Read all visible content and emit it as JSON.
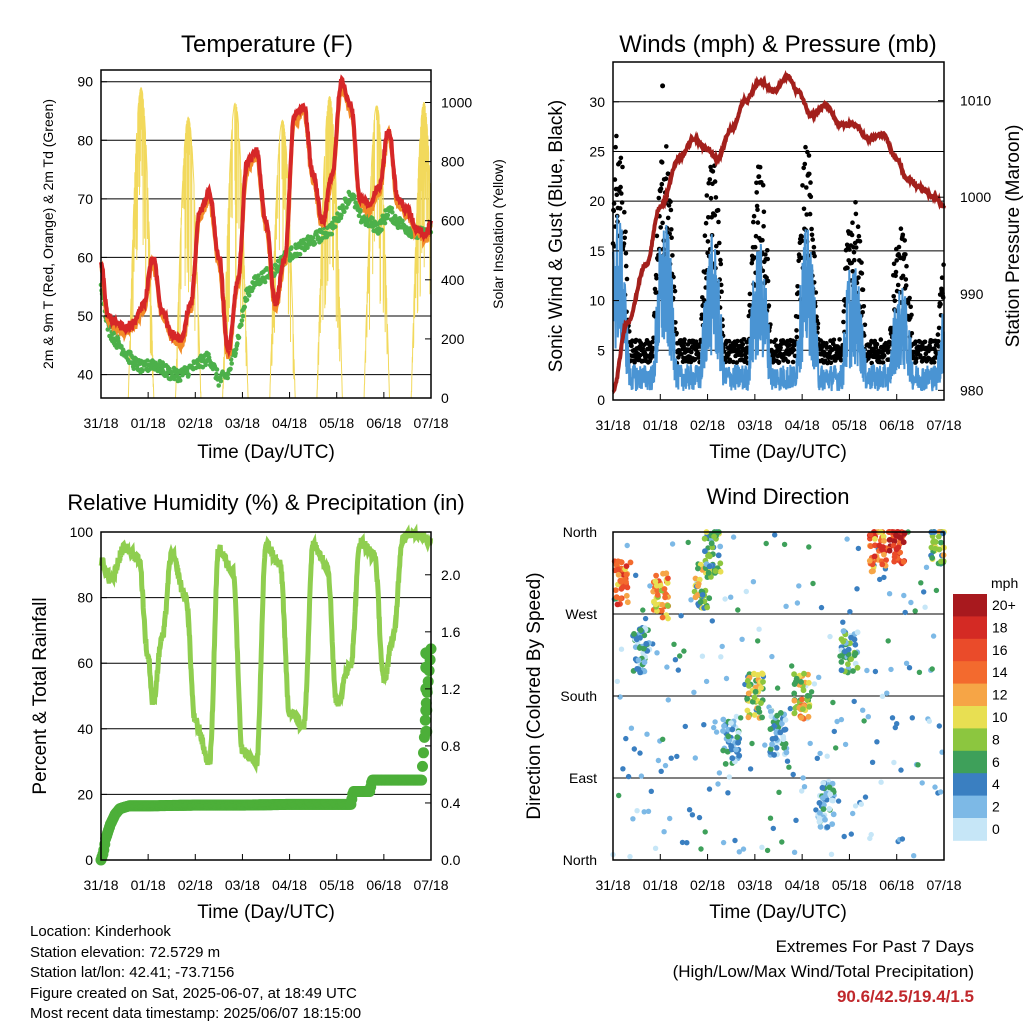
{
  "colors": {
    "red": "#d62728",
    "orange": "#f28c28",
    "green": "#4cb04a",
    "yellow": "#f2d95c",
    "blue": "#4a94d3",
    "black": "#000000",
    "maroon": "#a3201c",
    "rh_green": "#8fce4f",
    "rain_green": "#4caf39"
  },
  "day_ticks": [
    "31/18",
    "01/18",
    "02/18",
    "03/18",
    "04/18",
    "05/18",
    "06/18",
    "07/18"
  ],
  "panels": {
    "temperature": {
      "title": "Temperature (F)",
      "xlabel": "Time (Day/UTC)",
      "ylabel": "2m & 9m T (Red, Orange) & 2m Td (Green)",
      "ylabel_right": "Solar Insolation (Yellow)"
    },
    "wind": {
      "title": "Winds (mph) & Pressure (mb)",
      "xlabel": "Time (Day/UTC)",
      "ylabel": "Sonic Wind & Gust (Blue, Black)",
      "ylabel_right": "Station Pressure (Maroon)"
    },
    "humidity": {
      "title": "Relative Humidity (%) & Precipitation (in)",
      "xlabel": "Time (Day/UTC)",
      "ylabel": "Percent & Total Rainfall"
    },
    "direction": {
      "title": "Wind Direction",
      "xlabel": "Time (Day/UTC)",
      "ylabel": "Direction (Colored By Speed)",
      "legend_title": "mph",
      "legend_labels": [
        "20+",
        "18",
        "16",
        "14",
        "12",
        "10",
        "8",
        "6",
        "4",
        "2",
        "0"
      ],
      "legend_colors": [
        "#a8191e",
        "#d42a24",
        "#ea4b2a",
        "#f36a2e",
        "#f6a546",
        "#e8df52",
        "#8cc63f",
        "#3ea05a",
        "#3a7fc1",
        "#7db9e6",
        "#c6e6f7"
      ]
    }
  },
  "info": {
    "location": "Location: Kinderhook",
    "elevation": "Station elevation: 72.5729 m",
    "latlon": "Station lat/lon: 42.41; -73.7156",
    "created": "Figure created on Sat, 2025-06-07, at 18:49 UTC",
    "recent": "Most recent data timestamp: 2025/06/07 18:15:00"
  },
  "extremes": {
    "line1": "Extremes For Past 7 Days",
    "line2": "(High/Low/Max Wind/Total Precipitation)",
    "values": "90.6/42.5/19.4/1.5"
  },
  "chart_data": [
    {
      "type": "line",
      "title": "Temperature (F)",
      "xlabel": "Time (Day/UTC)",
      "ylabel": "2m & 9m T (Red, Orange) & 2m Td (Green)",
      "ylabel_right": "Solar Insolation (Yellow)",
      "x_ticks": [
        "31/18",
        "01/18",
        "02/18",
        "03/18",
        "04/18",
        "05/18",
        "06/18",
        "07/18"
      ],
      "ylim": [
        36,
        92
      ],
      "yticks": [
        40,
        50,
        60,
        70,
        80,
        90
      ],
      "y2lim": [
        0,
        1110
      ],
      "y2ticks": [
        0,
        200,
        400,
        600,
        800,
        1000
      ],
      "x_days": [
        0,
        0.15,
        0.3,
        0.5,
        0.7,
        0.9,
        1.1,
        1.3,
        1.5,
        1.7,
        1.9,
        2.1,
        2.3,
        2.5,
        2.7,
        2.9,
        3.1,
        3.3,
        3.5,
        3.7,
        3.9,
        4.1,
        4.3,
        4.5,
        4.7,
        4.9,
        5.1,
        5.3,
        5.5,
        5.7,
        5.9,
        6.1,
        6.3,
        6.5,
        6.7,
        6.9,
        7.0
      ],
      "series": [
        {
          "name": "2m T",
          "color": "red",
          "values": [
            59,
            50,
            49,
            48,
            49,
            52,
            60,
            51,
            47,
            46,
            52,
            68,
            71,
            60,
            44,
            56,
            76,
            78,
            66,
            52,
            60,
            84,
            86,
            74,
            66,
            74,
            90,
            86,
            70,
            69,
            72,
            82,
            70,
            68,
            65,
            64,
            66
          ]
        },
        {
          "name": "2m Td",
          "color": "green",
          "values": [
            56,
            48,
            46,
            44,
            42,
            41,
            42,
            41,
            40,
            40,
            41,
            42,
            43,
            39,
            40,
            46,
            54,
            56,
            57,
            58,
            60,
            61,
            62,
            63,
            64,
            65,
            68,
            71,
            67,
            66,
            65,
            68,
            66,
            65,
            64,
            64,
            65
          ]
        },
        {
          "name": "Solar Insolation",
          "color": "yellow",
          "peaks_day": [
            0.85,
            1.85,
            2.85,
            3.85,
            4.85,
            5.85,
            6.85
          ],
          "peaks_value": [
            1050,
            950,
            1000,
            940,
            1020,
            990,
            1000
          ]
        }
      ]
    },
    {
      "type": "line",
      "title": "Winds (mph) & Pressure (mb)",
      "xlabel": "Time (Day/UTC)",
      "ylabel": "Sonic Wind & Gust (Blue, Black)",
      "ylabel_right": "Station Pressure (Maroon)",
      "x_ticks": [
        "31/18",
        "01/18",
        "02/18",
        "03/18",
        "04/18",
        "05/18",
        "06/18",
        "07/18"
      ],
      "ylim": [
        0,
        34
      ],
      "yticks": [
        0,
        5,
        10,
        15,
        20,
        25,
        30
      ],
      "y2lim": [
        979,
        1014
      ],
      "y2ticks": [
        980,
        990,
        1000,
        1010
      ],
      "series": [
        {
          "name": "Station Pressure",
          "color": "maroon",
          "x_days": [
            0,
            0.3,
            0.7,
            1.0,
            1.4,
            1.7,
            2.0,
            2.2,
            2.5,
            2.8,
            3.1,
            3.4,
            3.7,
            3.9,
            4.2,
            4.5,
            4.8,
            5.1,
            5.4,
            5.7,
            6.0,
            6.2,
            6.5,
            6.8,
            7.0
          ],
          "values": [
            980,
            987,
            993,
            999,
            1004,
            1006,
            1005,
            1004,
            1007,
            1010,
            1012,
            1011,
            1012.5,
            1011,
            1008.5,
            1009.5,
            1007.5,
            1007.5,
            1006,
            1006.5,
            1004,
            1002,
            1001,
            1000,
            999
          ]
        }
      ],
      "wind_diurnal_peaks_mph": [
        24,
        22,
        20,
        19,
        21,
        15,
        12,
        14
      ],
      "max_gust": 31.6
    },
    {
      "type": "line",
      "title": "Relative Humidity (%) & Precipitation (in)",
      "xlabel": "Time (Day/UTC)",
      "ylabel": "Percent & Total Rainfall",
      "x_ticks": [
        "31/18",
        "01/18",
        "02/18",
        "03/18",
        "04/18",
        "05/18",
        "06/18",
        "07/18"
      ],
      "ylim": [
        0,
        100
      ],
      "yticks": [
        0,
        20,
        40,
        60,
        80,
        100
      ],
      "y2lim": [
        0,
        2.3
      ],
      "y2ticks": [
        0.0,
        0.4,
        0.8,
        1.2,
        1.6,
        2.0
      ],
      "series": [
        {
          "name": "Relative Humidity",
          "color": "rh_green",
          "x_days": [
            0,
            0.2,
            0.5,
            0.8,
            1.0,
            1.1,
            1.3,
            1.5,
            1.8,
            2.0,
            2.3,
            2.5,
            2.8,
            3.0,
            3.3,
            3.5,
            3.8,
            4.0,
            4.3,
            4.5,
            4.8,
            5.0,
            5.3,
            5.5,
            5.8,
            6.0,
            6.2,
            6.4,
            6.6,
            6.8,
            7.0
          ],
          "values": [
            91,
            86,
            95,
            92,
            62,
            48,
            68,
            93,
            80,
            42,
            30,
            95,
            88,
            33,
            30,
            96,
            90,
            45,
            41,
            96,
            90,
            48,
            60,
            97,
            93,
            55,
            68,
            98,
            100,
            99,
            97
          ]
        },
        {
          "name": "Total Rainfall",
          "color": "rain_green",
          "x_days": [
            0,
            0.05,
            0.1,
            0.2,
            0.3,
            0.4,
            0.5,
            0.6,
            1.0,
            2.0,
            3.0,
            4.0,
            5.0,
            5.3,
            5.35,
            5.7,
            5.75,
            6.0,
            6.8,
            6.85,
            6.9,
            7.0
          ],
          "values": [
            0.0,
            0.05,
            0.15,
            0.25,
            0.32,
            0.36,
            0.37,
            0.38,
            0.38,
            0.385,
            0.385,
            0.39,
            0.39,
            0.39,
            0.48,
            0.48,
            0.56,
            0.56,
            0.56,
            0.8,
            1.1,
            1.48
          ]
        }
      ]
    },
    {
      "type": "scatter",
      "title": "Wind Direction",
      "xlabel": "Time (Day/UTC)",
      "ylabel": "Direction (Colored By Speed)",
      "x_ticks": [
        "31/18",
        "01/18",
        "02/18",
        "03/18",
        "04/18",
        "05/18",
        "06/18",
        "07/18"
      ],
      "y_ticks": [
        "North",
        "West",
        "South",
        "East",
        "North"
      ],
      "ylim_deg": [
        360,
        0
      ],
      "clusters": [
        {
          "day": 0.2,
          "dir_deg": 305,
          "speed_mph": 14
        },
        {
          "day": 0.6,
          "dir_deg": 230,
          "speed_mph": 3
        },
        {
          "day": 1.0,
          "dir_deg": 290,
          "speed_mph": 12
        },
        {
          "day": 1.9,
          "dir_deg": 300,
          "speed_mph": 8
        },
        {
          "day": 2.1,
          "dir_deg": 340,
          "speed_mph": 6
        },
        {
          "day": 2.5,
          "dir_deg": 130,
          "speed_mph": 3
        },
        {
          "day": 3.0,
          "dir_deg": 180,
          "speed_mph": 9
        },
        {
          "day": 3.5,
          "dir_deg": 140,
          "speed_mph": 3
        },
        {
          "day": 4.0,
          "dir_deg": 180,
          "speed_mph": 10
        },
        {
          "day": 4.5,
          "dir_deg": 60,
          "speed_mph": 3
        },
        {
          "day": 5.0,
          "dir_deg": 230,
          "speed_mph": 4
        },
        {
          "day": 5.6,
          "dir_deg": 340,
          "speed_mph": 14
        },
        {
          "day": 6.0,
          "dir_deg": 350,
          "speed_mph": 17
        },
        {
          "day": 6.9,
          "dir_deg": 350,
          "speed_mph": 8
        }
      ],
      "legend_title": "mph"
    }
  ]
}
